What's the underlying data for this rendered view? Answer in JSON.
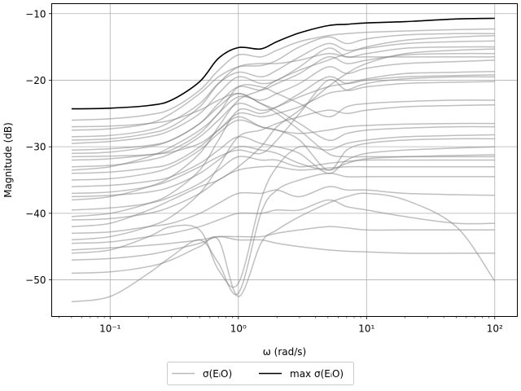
{
  "chart_data": {
    "type": "line",
    "title": "",
    "xlabel": "ω (rad/s)",
    "ylabel": "Magnitude (dB)",
    "xscale": "log",
    "xlim": [
      0.035,
      150
    ],
    "ylim": [
      -55.5,
      -8.5
    ],
    "grid": true,
    "legend_placement": "below",
    "x_ticks": [
      {
        "value": 0.1,
        "label": "10⁻¹"
      },
      {
        "value": 1,
        "label": "10⁰"
      },
      {
        "value": 10,
        "label": "10¹"
      },
      {
        "value": 100,
        "label": "10²"
      }
    ],
    "y_ticks": [
      {
        "value": -50,
        "label": "−50"
      },
      {
        "value": -40,
        "label": "−40"
      },
      {
        "value": -30,
        "label": "−30"
      },
      {
        "value": -20,
        "label": "−20"
      },
      {
        "value": -10,
        "label": "−10"
      }
    ],
    "legend": [
      {
        "label": "σ(EᵢO)",
        "color": "#bbbbbb"
      },
      {
        "label": "max σ(EᵢO)",
        "color": "#000000"
      }
    ],
    "x": [
      0.05,
      0.1,
      0.2,
      0.3,
      0.5,
      0.7,
      1,
      1.5,
      2,
      3,
      5,
      7,
      10,
      20,
      50,
      100
    ],
    "max_series": {
      "name": "max σ(EᵢO)",
      "color": "#000000",
      "values": [
        -24.3,
        -24.2,
        -23.8,
        -23.0,
        -20.2,
        -16.7,
        -15.1,
        -15.3,
        -14.2,
        -12.9,
        -11.8,
        -11.6,
        -11.4,
        -11.2,
        -10.8,
        -10.7
      ]
    },
    "series": [
      {
        "name": "",
        "values": [
          -26.0,
          -25.8,
          -25.2,
          -24.3,
          -21.5,
          -18.5,
          -16.2,
          -16.5,
          -15.5,
          -14.2,
          -13.3,
          -13.0,
          -12.8,
          -12.6,
          -12.4,
          -12.3
        ]
      },
      {
        "name": "",
        "values": [
          -27.5,
          -27.3,
          -26.5,
          -25.0,
          -22.0,
          -19.5,
          -18.0,
          -17.8,
          -17.0,
          -15.0,
          -13.5,
          -14.5,
          -13.8,
          -13.2,
          -13.0,
          -13.0
        ]
      },
      {
        "name": "",
        "values": [
          -28.5,
          -28.3,
          -27.5,
          -26.2,
          -23.5,
          -20.5,
          -18.8,
          -19.5,
          -18.5,
          -16.5,
          -14.5,
          -15.5,
          -15.2,
          -14.5,
          -14.2,
          -14.1
        ]
      },
      {
        "name": "",
        "values": [
          -29.5,
          -29.2,
          -28.5,
          -27.5,
          -25.0,
          -22.0,
          -19.5,
          -20.5,
          -20.0,
          -18.0,
          -15.2,
          -16.5,
          -16.0,
          -15.2,
          -15.0,
          -15.0
        ]
      },
      {
        "name": "",
        "values": [
          -31.0,
          -30.8,
          -30.0,
          -29.0,
          -26.5,
          -23.5,
          -21.0,
          -21.5,
          -20.5,
          -19.0,
          -16.5,
          -17.5,
          -17.0,
          -16.2,
          -16.0,
          -16.0
        ]
      },
      {
        "name": "",
        "values": [
          -32.0,
          -31.8,
          -31.2,
          -30.5,
          -28.0,
          -25.0,
          -22.5,
          -23.0,
          -22.0,
          -20.5,
          -18.0,
          -19.0,
          -18.2,
          -17.5,
          -17.2,
          -17.0
        ]
      },
      {
        "name": "",
        "values": [
          -33.0,
          -32.8,
          -32.0,
          -31.0,
          -28.5,
          -26.0,
          -23.5,
          -24.5,
          -24.0,
          -22.5,
          -21.0,
          -20.5,
          -19.8,
          -19.0,
          -18.8,
          -18.7
        ]
      },
      {
        "name": "",
        "values": [
          -34.0,
          -33.8,
          -33.2,
          -32.5,
          -30.0,
          -27.5,
          -25.0,
          -25.5,
          -25.0,
          -24.0,
          -22.0,
          -21.5,
          -20.5,
          -19.8,
          -19.5,
          -19.5
        ]
      },
      {
        "name": "",
        "values": [
          -31.5,
          -31.4,
          -31.2,
          -30.8,
          -29.5,
          -27.5,
          -25.5,
          -27.0,
          -27.5,
          -28.0,
          -27.5,
          -27.0,
          -26.8,
          -26.6,
          -26.5,
          -26.5
        ]
      },
      {
        "name": "",
        "values": [
          -30.5,
          -30.3,
          -29.8,
          -29.0,
          -26.5,
          -24.0,
          -22.0,
          -23.5,
          -24.5,
          -26.5,
          -29.0,
          -28.0,
          -27.5,
          -27.2,
          -27.0,
          -27.0
        ]
      },
      {
        "name": "",
        "values": [
          -35.0,
          -34.8,
          -34.0,
          -33.0,
          -30.5,
          -28.0,
          -26.0,
          -27.0,
          -27.5,
          -29.0,
          -33.5,
          -30.5,
          -29.5,
          -29.0,
          -28.8,
          -28.8
        ]
      },
      {
        "name": "",
        "values": [
          -36.0,
          -35.8,
          -35.2,
          -34.5,
          -32.5,
          -30.5,
          -28.5,
          -29.5,
          -30.0,
          -31.0,
          -34.0,
          -32.0,
          -31.0,
          -30.5,
          -30.2,
          -30.0
        ]
      },
      {
        "name": "",
        "values": [
          -37.5,
          -37.3,
          -36.8,
          -36.0,
          -34.0,
          -32.0,
          -30.0,
          -30.5,
          -31.0,
          -32.5,
          -33.5,
          -32.5,
          -31.8,
          -31.5,
          -31.3,
          -31.2
        ]
      },
      {
        "name": "",
        "values": [
          -39.5,
          -39.2,
          -38.5,
          -37.5,
          -35.5,
          -33.5,
          -31.5,
          -32.0,
          -32.0,
          -33.0,
          -32.5,
          -32.2,
          -32.0,
          -32.0,
          -32.0,
          -32.0
        ]
      },
      {
        "name": "",
        "values": [
          -41.0,
          -40.8,
          -40.0,
          -39.0,
          -37.0,
          -35.0,
          -33.5,
          -33.0,
          -33.0,
          -33.5,
          -33.2,
          -33.0,
          -33.0,
          -33.0,
          -33.0,
          -33.0
        ]
      },
      {
        "name": "",
        "values": [
          -43.0,
          -42.8,
          -42.0,
          -41.5,
          -40.0,
          -38.5,
          -37.0,
          -37.0,
          -36.5,
          -37.5,
          -36.0,
          -36.5,
          -36.5,
          -37.0,
          -37.2,
          -37.3
        ]
      },
      {
        "name": "",
        "values": [
          -44.5,
          -44.3,
          -43.5,
          -43.0,
          -42.0,
          -41.0,
          -40.0,
          -40.0,
          -39.5,
          -39.5,
          -38.0,
          -39.0,
          -39.5,
          -40.5,
          -41.5,
          -41.5
        ]
      },
      {
        "name": "",
        "values": [
          -45.5,
          -45.2,
          -44.8,
          -44.5,
          -44.0,
          -43.5,
          -43.5,
          -43.5,
          -43.0,
          -42.5,
          -42.0,
          -42.2,
          -42.5,
          -42.5,
          -42.5,
          -42.5
        ]
      },
      {
        "name": "",
        "values": [
          -47.0,
          -46.8,
          -46.2,
          -45.5,
          -44.5,
          -43.5,
          -44.0,
          -44.0,
          -44.5,
          -45.0,
          -45.5,
          -45.7,
          -45.8,
          -46.0,
          -46.0,
          -46.0
        ]
      },
      {
        "name": "",
        "values": [
          -49.0,
          -48.8,
          -48.0,
          -47.0,
          -45.0,
          -44.0,
          -52.5,
          -44.5,
          -42.5,
          -40.5,
          -38.5,
          -37.5,
          -37.0,
          -38.0,
          -42.0,
          -50.2
        ]
      },
      {
        "name": "",
        "values": [
          -53.3,
          -52.5,
          -49.0,
          -46.5,
          -44.0,
          -47.5,
          -52.0,
          -40.0,
          -36.5,
          -35.0,
          -34.0,
          -34.5,
          -34.5,
          -34.5,
          -34.5,
          -34.5
        ]
      },
      {
        "name": "",
        "values": [
          -46.0,
          -45.5,
          -43.5,
          -42.0,
          -42.5,
          -48.5,
          -50.5,
          -38.0,
          -33.0,
          -30.0,
          -30.5,
          -29.5,
          -29.0,
          -28.5,
          -28.3,
          -28.2
        ]
      },
      {
        "name": "",
        "values": [
          -42.0,
          -41.5,
          -39.5,
          -38.0,
          -36.0,
          -35.0,
          -33.0,
          -30.0,
          -27.0,
          -24.5,
          -21.0,
          -19.0,
          -17.5,
          -16.0,
          -15.5,
          -15.3
        ]
      },
      {
        "name": "",
        "values": [
          -38.0,
          -37.5,
          -36.0,
          -34.5,
          -31.0,
          -27.0,
          -23.0,
          -21.5,
          -20.0,
          -18.5,
          -17.0,
          -16.0,
          -15.0,
          -14.0,
          -13.5,
          -13.3
        ]
      },
      {
        "name": "",
        "values": [
          -33.5,
          -33.0,
          -31.5,
          -30.0,
          -27.5,
          -25.0,
          -21.0,
          -21.0,
          -22.0,
          -23.5,
          -25.5,
          -24.0,
          -23.5,
          -23.2,
          -23.0,
          -23.0
        ]
      },
      {
        "name": "",
        "values": [
          -37.0,
          -36.8,
          -36.0,
          -35.0,
          -33.0,
          -31.5,
          -30.5,
          -31.0,
          -29.0,
          -25.0,
          -20.0,
          -21.5,
          -21.0,
          -20.5,
          -20.3,
          -20.2
        ]
      },
      {
        "name": "",
        "values": [
          -40.5,
          -40.0,
          -38.5,
          -37.0,
          -33.5,
          -29.0,
          -24.5,
          -25.0,
          -24.0,
          -22.0,
          -19.5,
          -20.5,
          -20.0,
          -19.5,
          -19.3,
          -19.2
        ]
      },
      {
        "name": "",
        "values": [
          -44.0,
          -43.5,
          -42.0,
          -40.5,
          -37.0,
          -33.0,
          -28.5,
          -27.5,
          -26.5,
          -25.5,
          -24.5,
          -25.0,
          -24.5,
          -24.0,
          -23.8,
          -23.7
        ]
      },
      {
        "name": "",
        "values": [
          -27.0,
          -26.9,
          -26.5,
          -26.0,
          -24.5,
          -23.0,
          -22.0,
          -23.5,
          -25.0,
          -27.5,
          -31.0,
          -31.5,
          -31.5,
          -31.5,
          -31.5,
          -31.5
        ]
      },
      {
        "name": "",
        "values": [
          -29.0,
          -28.8,
          -28.0,
          -27.0,
          -24.0,
          -20.5,
          -18.0,
          -17.5,
          -17.5,
          -17.0,
          -16.0,
          -16.5,
          -16.5,
          -16.5,
          -16.5,
          -16.5
        ]
      }
    ]
  }
}
